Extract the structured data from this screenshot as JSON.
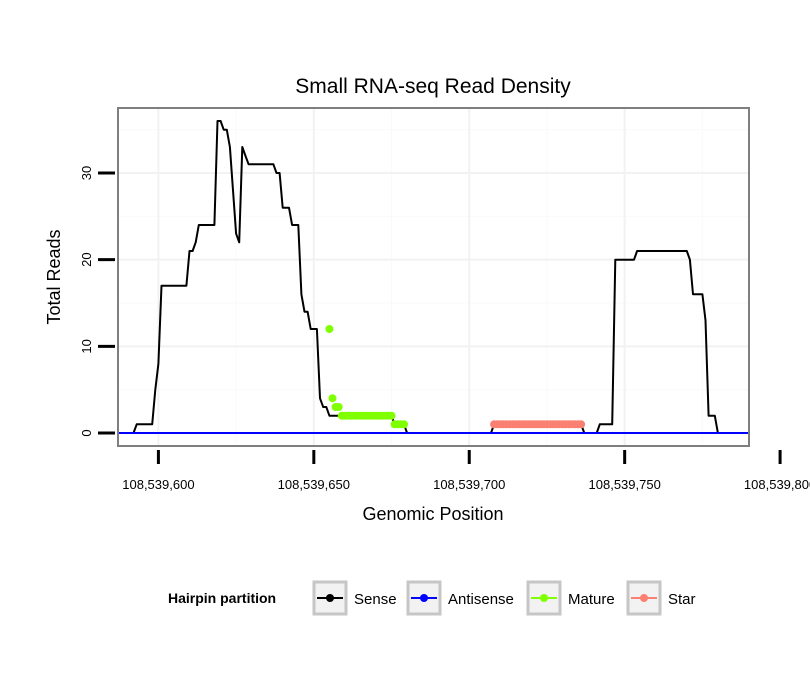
{
  "chart_data": {
    "type": "line",
    "title": "Small RNA-seq Read Density",
    "xlabel": "Genomic Position",
    "ylabel": "Total Reads",
    "xlim": [
      108539587,
      108539790
    ],
    "ylim": [
      -1.5,
      37.5
    ],
    "x_ticks": [
      108539600,
      108539650,
      108539700,
      108539750,
      108539800
    ],
    "x_tick_labels": [
      "108,539,600",
      "108,539,650",
      "108,539,700",
      "108,539,750",
      "108,539,800"
    ],
    "y_ticks": [
      0,
      10,
      20,
      30
    ],
    "y_tick_labels": [
      "0",
      "10",
      "20",
      "30"
    ],
    "grid": true,
    "legend": {
      "title": "Hairpin partition",
      "position": "bottom",
      "entries": [
        {
          "label": "Sense",
          "color": "#000000"
        },
        {
          "label": "Antisense",
          "color": "#0000ff"
        },
        {
          "label": "Mature",
          "color": "#7fff00"
        },
        {
          "label": "Star",
          "color": "#fa8072"
        }
      ]
    },
    "series": [
      {
        "name": "Sense",
        "color": "#000000",
        "mode": "line",
        "x": [
          108539587,
          108539592,
          108539593,
          108539598,
          108539599,
          108539600,
          108539601,
          108539609,
          108539610,
          108539611,
          108539612,
          108539613,
          108539618,
          108539619,
          108539620,
          108539621,
          108539622,
          108539623,
          108539624,
          108539625,
          108539626,
          108539627,
          108539628,
          108539629,
          108539630,
          108539631,
          108539633,
          108539637,
          108539638,
          108539639,
          108539640,
          108539642,
          108539643,
          108539645,
          108539646,
          108539647,
          108539648,
          108539649,
          108539650,
          108539651,
          108539652,
          108539653,
          108539654,
          108539655,
          108539656,
          108539657,
          108539658,
          108539659,
          108539660,
          108539675,
          108539676,
          108539679,
          108539680,
          108539707,
          108539708,
          108539736,
          108539737,
          108539741,
          108539742,
          108539746,
          108539747,
          108539748,
          108539753,
          108539754,
          108539755,
          108539770,
          108539771,
          108539772,
          108539775,
          108539776,
          108539777,
          108539779,
          108539780,
          108539790
        ],
        "y": [
          0,
          0,
          1,
          1,
          5,
          8,
          17,
          17,
          21,
          21,
          22,
          24,
          24,
          36,
          36,
          35,
          35,
          33,
          28,
          23,
          22,
          33,
          32,
          31,
          31,
          31,
          31,
          31,
          30,
          30,
          26,
          26,
          24,
          24,
          16,
          14,
          14,
          12,
          12,
          12,
          4,
          3,
          3,
          2,
          2,
          2,
          2,
          2,
          2,
          2,
          1,
          1,
          0,
          0,
          1,
          1,
          0,
          0,
          1,
          1,
          20,
          20,
          20,
          21,
          21,
          21,
          20,
          16,
          16,
          13,
          2,
          2,
          0,
          0
        ]
      },
      {
        "name": "Antisense",
        "color": "#0000ff",
        "mode": "line",
        "x": [
          108539587,
          108539790
        ],
        "y": [
          0,
          0
        ]
      },
      {
        "name": "Mature",
        "color": "#7fff00",
        "mode": "points",
        "x": [
          108539655,
          108539656,
          108539657,
          108539658,
          108539659,
          108539660,
          108539661,
          108539662,
          108539663,
          108539664,
          108539665,
          108539666,
          108539667,
          108539668,
          108539669,
          108539670,
          108539671,
          108539672,
          108539673,
          108539674,
          108539675,
          108539676,
          108539677,
          108539678,
          108539679
        ],
        "y": [
          12,
          4,
          3,
          3,
          2,
          2,
          2,
          2,
          2,
          2,
          2,
          2,
          2,
          2,
          2,
          2,
          2,
          2,
          2,
          2,
          2,
          1,
          1,
          1,
          1
        ]
      },
      {
        "name": "Star",
        "color": "#fa8072",
        "mode": "points",
        "x": [
          108539708,
          108539709,
          108539710,
          108539711,
          108539712,
          108539713,
          108539714,
          108539715,
          108539716,
          108539717,
          108539718,
          108539719,
          108539720,
          108539721,
          108539722,
          108539723,
          108539724,
          108539725,
          108539726,
          108539727,
          108539728,
          108539729,
          108539730,
          108539731,
          108539732,
          108539733,
          108539734,
          108539735,
          108539736
        ],
        "y": [
          1,
          1,
          1,
          1,
          1,
          1,
          1,
          1,
          1,
          1,
          1,
          1,
          1,
          1,
          1,
          1,
          1,
          1,
          1,
          1,
          1,
          1,
          1,
          1,
          1,
          1,
          1,
          1,
          1
        ]
      }
    ]
  }
}
